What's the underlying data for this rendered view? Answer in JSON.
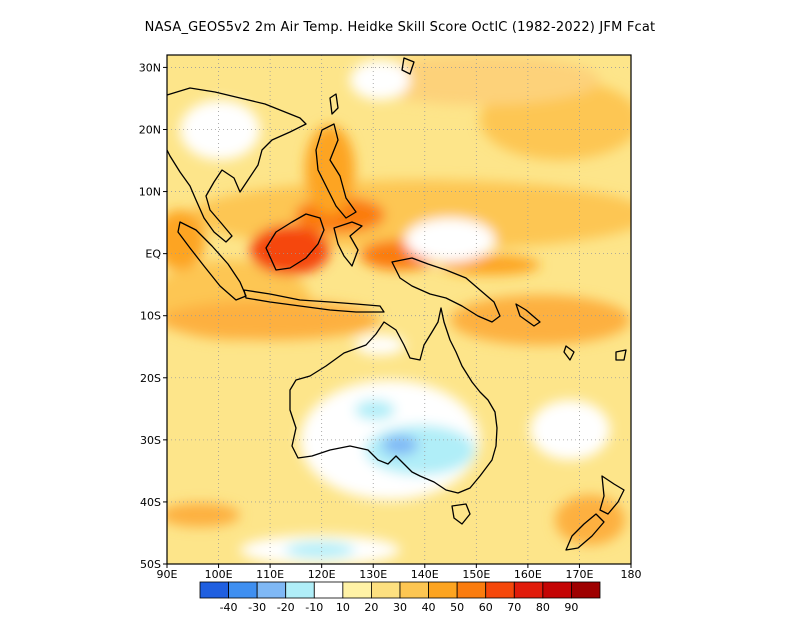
{
  "title": "NASA_GEOS5v2  2m Air Temp. Heidke Skill Score OctlC (1982-2022) JFM Fcat",
  "map": {
    "lat_labels": [
      "30N",
      "20N",
      "10N",
      "EQ",
      "10S",
      "20S",
      "30S",
      "40S",
      "50S"
    ],
    "lon_labels": [
      "90E",
      "100E",
      "110E",
      "120E",
      "130E",
      "140E",
      "150E",
      "160E",
      "170E",
      "180"
    ],
    "lat_values": [
      30,
      20,
      10,
      0,
      -10,
      -20,
      -30,
      -40,
      -50
    ],
    "lon_values": [
      90,
      100,
      110,
      120,
      130,
      140,
      150,
      160,
      170,
      180
    ],
    "extent": {
      "lon_min": 90,
      "lon_max": 180,
      "lat_min": -50,
      "lat_max": 32
    },
    "grid": "dotted"
  },
  "colorbar": {
    "colors": [
      "#1f5fe0",
      "#3f8ff0",
      "#7fb8f5",
      "#b0eef8",
      "#ffffff",
      "#fff2a6",
      "#fde080",
      "#fdc652",
      "#fda420",
      "#fb7c0e",
      "#f5470a",
      "#e11b0a",
      "#c40404",
      "#9e0000"
    ],
    "labels": [
      "-40",
      "-30",
      "-20",
      "-10",
      "10",
      "20",
      "30",
      "40",
      "50",
      "60",
      "70",
      "80",
      "90"
    ]
  }
}
